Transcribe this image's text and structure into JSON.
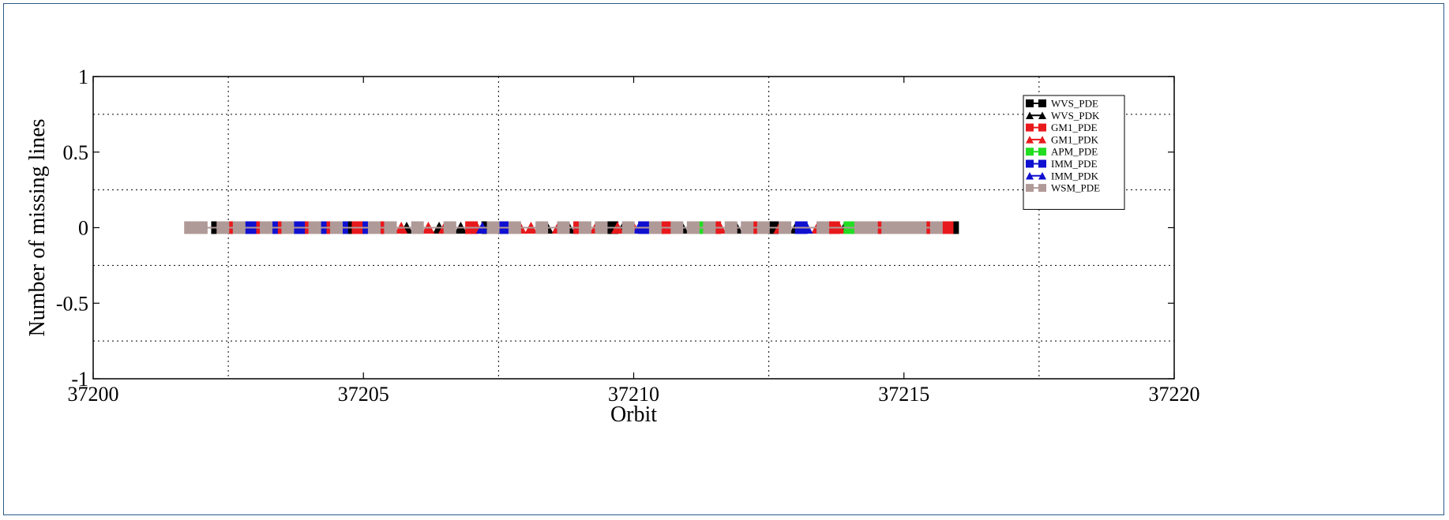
{
  "chart_data": {
    "type": "scatter",
    "title": "",
    "xlabel": "Orbit",
    "ylabel": "Number of missing lines",
    "xlim": [
      37200,
      37220
    ],
    "ylim": [
      -1,
      1
    ],
    "x_ticks": [
      "37200",
      "37205",
      "37210",
      "37215",
      "37220"
    ],
    "x_tick_values": [
      37200,
      37205,
      37210,
      37215,
      37220
    ],
    "y_ticks": [
      "1",
      "0.5",
      "0",
      "-0.5",
      "-1"
    ],
    "y_tick_values": [
      1,
      0.5,
      0,
      -0.5,
      -1
    ],
    "x_grid_values": [
      37202.5,
      37207.5,
      37212.5,
      37217.5
    ],
    "y_grid_values": [
      0.75,
      0.25,
      -0.25,
      -0.75
    ],
    "grid": true,
    "legend_position": "top-right",
    "series": [
      {
        "name": "WVS_PDE",
        "marker": "square",
        "color": "#000000",
        "x": [
          37201.9,
          37202.3,
          37203.1,
          37203.5,
          37203.9,
          37204.3,
          37204.7,
          37205.0,
          37205.4,
          37207.3,
          37209.6,
          37211.3,
          37212.6,
          37214.3,
          37214.8,
          37215.9
        ],
        "y": [
          0,
          0,
          0,
          0,
          0,
          0,
          0,
          0,
          0,
          0,
          0,
          0,
          0,
          0,
          0,
          0
        ]
      },
      {
        "name": "WVS_PDK",
        "marker": "triangle",
        "color": "#000000",
        "x": [
          37205.8,
          37206.4,
          37206.8,
          37207.6,
          37208.4,
          37208.8,
          37209.8,
          37210.5,
          37210.9,
          37211.4,
          37211.9,
          37213.0,
          37213.9
        ],
        "y": [
          0,
          0,
          0,
          0,
          0,
          0,
          0,
          0,
          0,
          0,
          0,
          0,
          0
        ]
      },
      {
        "name": "GM1_PDE",
        "marker": "square",
        "color": "#e8191c",
        "x": [
          37202.6,
          37203.0,
          37203.4,
          37204.0,
          37204.4,
          37204.9,
          37205.3,
          37207.0,
          37209.0,
          37210.6,
          37211.5,
          37212.3,
          37213.7,
          37214.5,
          37215.5,
          37215.8
        ],
        "y": [
          0,
          0,
          0,
          0,
          0,
          0,
          0,
          0,
          0,
          0,
          0,
          0,
          0,
          0,
          0,
          0
        ]
      },
      {
        "name": "GM1_PDK",
        "marker": "triangle",
        "color": "#e8191c",
        "x": [
          37205.7,
          37206.2,
          37206.5,
          37207.1,
          37207.9,
          37208.1,
          37208.6,
          37209.3,
          37209.7,
          37210.0,
          37210.7,
          37211.6,
          37212.2,
          37212.7,
          37213.4,
          37213.8,
          37214.6
        ],
        "y": [
          0,
          0,
          0,
          0,
          0,
          0,
          0,
          0,
          0,
          0,
          0,
          0,
          0,
          0,
          0,
          0,
          0
        ]
      },
      {
        "name": "APM_PDE",
        "marker": "square",
        "color": "#22dd22",
        "x": [
          37210.3,
          37211.2,
          37214.0,
          37214.1
        ],
        "y": [
          0,
          0,
          0,
          0
        ]
      },
      {
        "name": "IMM_PDE",
        "marker": "square",
        "color": "#1010d0",
        "x": [
          37202.9,
          37203.3,
          37203.8,
          37204.2,
          37204.6,
          37205.1,
          37207.5,
          37207.6,
          37210.2,
          37213.1
        ],
        "y": [
          0,
          0,
          0,
          0,
          0,
          0,
          0,
          0,
          0,
          0
        ]
      },
      {
        "name": "IMM_PDK",
        "marker": "triangle",
        "color": "#1010d0",
        "x": [
          37207.2,
          37210.1,
          37213.2
        ],
        "y": [
          0,
          0,
          0
        ]
      },
      {
        "name": "WSM_PDE",
        "marker": "square",
        "color": "#b09a98",
        "x": [
          37201.8,
          37202.0,
          37202.4,
          37202.7,
          37203.2,
          37203.6,
          37204.1,
          37204.5,
          37205.2,
          37205.5,
          37206.0,
          37206.6,
          37207.4,
          37207.8,
          37208.3,
          37208.7,
          37209.1,
          37209.4,
          37209.9,
          37210.4,
          37210.8,
          37211.1,
          37211.4,
          37211.8,
          37212.1,
          37212.4,
          37212.8,
          37213.5,
          37214.2,
          37214.4,
          37214.7,
          37214.9,
          37215.1,
          37215.3,
          37215.6
        ],
        "y": [
          0,
          0,
          0,
          0,
          0,
          0,
          0,
          0,
          0,
          0,
          0,
          0,
          0,
          0,
          0,
          0,
          0,
          0,
          0,
          0,
          0,
          0,
          0,
          0,
          0,
          0,
          0,
          0,
          0,
          0,
          0,
          0,
          0,
          0,
          0
        ]
      }
    ]
  }
}
